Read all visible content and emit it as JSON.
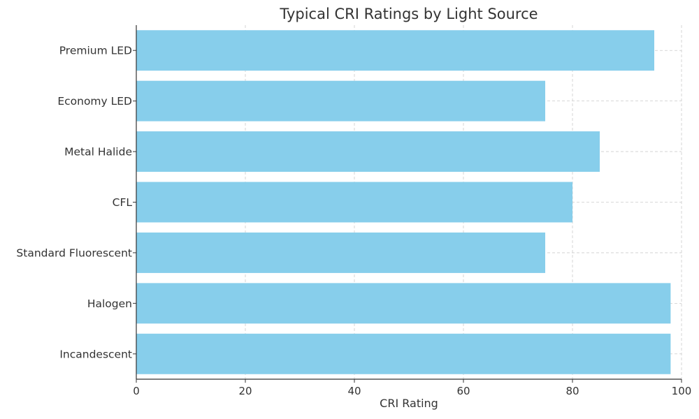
{
  "chart_data": {
    "type": "bar",
    "orientation": "horizontal",
    "title": "Typical CRI Ratings by Light Source",
    "xlabel": "CRI Rating",
    "ylabel": "",
    "categories": [
      "Incandescent",
      "Halogen",
      "Standard Fluorescent",
      "CFL",
      "Metal Halide",
      "Economy LED",
      "Premium LED"
    ],
    "values": [
      98,
      98,
      75,
      80,
      85,
      75,
      95
    ],
    "xlim": [
      0,
      100
    ],
    "xticks": [
      0,
      20,
      40,
      60,
      80,
      100
    ],
    "xtick_labels": [
      "0",
      "20",
      "40",
      "60",
      "80",
      "100"
    ],
    "grid": true,
    "grid_style": "dashed",
    "bar_color": "#87CEEB"
  }
}
